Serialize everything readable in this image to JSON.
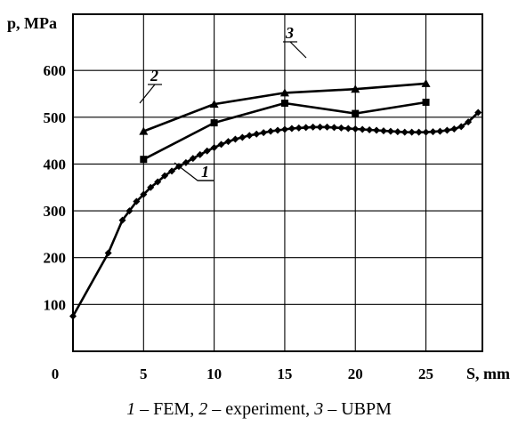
{
  "chart_data": {
    "type": "line",
    "title": "",
    "ylabel": "p, MPa",
    "xlabel": "S, mm",
    "xlim": [
      0,
      29
    ],
    "ylim": [
      0,
      720
    ],
    "x_ticks": [
      "0",
      "5",
      "10",
      "15",
      "20",
      "25"
    ],
    "y_ticks": [
      "100",
      "200",
      "300",
      "400",
      "500",
      "600"
    ],
    "grid": true,
    "series": [
      {
        "name": "1",
        "marker": "diamond",
        "points": [
          [
            0,
            75
          ],
          [
            2.5,
            210
          ],
          [
            3.5,
            280
          ],
          [
            4,
            300
          ],
          [
            4.5,
            320
          ],
          [
            5,
            335
          ],
          [
            5.5,
            350
          ],
          [
            6,
            362
          ],
          [
            6.5,
            375
          ],
          [
            7,
            385
          ],
          [
            7.5,
            395
          ],
          [
            8,
            403
          ],
          [
            8.5,
            412
          ],
          [
            9,
            420
          ],
          [
            9.5,
            428
          ],
          [
            10,
            435
          ],
          [
            10.5,
            442
          ],
          [
            11,
            448
          ],
          [
            11.5,
            453
          ],
          [
            12,
            457
          ],
          [
            12.5,
            461
          ],
          [
            13,
            464
          ],
          [
            13.5,
            467
          ],
          [
            14,
            470
          ],
          [
            14.5,
            472
          ],
          [
            15,
            474
          ],
          [
            15.5,
            476
          ],
          [
            16,
            477
          ],
          [
            16.5,
            478
          ],
          [
            17,
            479
          ],
          [
            17.5,
            479
          ],
          [
            18,
            479
          ],
          [
            18.5,
            478
          ],
          [
            19,
            477
          ],
          [
            19.5,
            476
          ],
          [
            20,
            475
          ],
          [
            20.5,
            474
          ],
          [
            21,
            473
          ],
          [
            21.5,
            472
          ],
          [
            22,
            471
          ],
          [
            22.5,
            470
          ],
          [
            23,
            469
          ],
          [
            23.5,
            468
          ],
          [
            24,
            468
          ],
          [
            24.5,
            468
          ],
          [
            25,
            468
          ],
          [
            25.5,
            469
          ],
          [
            26,
            470
          ],
          [
            26.5,
            472
          ],
          [
            27,
            475
          ],
          [
            27.5,
            480
          ],
          [
            28,
            490
          ],
          [
            28.7,
            510
          ]
        ]
      },
      {
        "name": "2",
        "marker": "square",
        "points": [
          [
            5,
            410
          ],
          [
            10,
            488
          ],
          [
            15,
            530
          ],
          [
            20,
            508
          ],
          [
            25,
            532
          ]
        ]
      },
      {
        "name": "3",
        "marker": "triangle",
        "points": [
          [
            5,
            470
          ],
          [
            10,
            528
          ],
          [
            15,
            552
          ],
          [
            20,
            560
          ],
          [
            25,
            572
          ]
        ]
      }
    ]
  },
  "caption": {
    "n1": "1",
    "t1": " – FEM, ",
    "n2": "2",
    "t2": " – experiment, ",
    "n3": "3",
    "t3": " – UBPM"
  }
}
